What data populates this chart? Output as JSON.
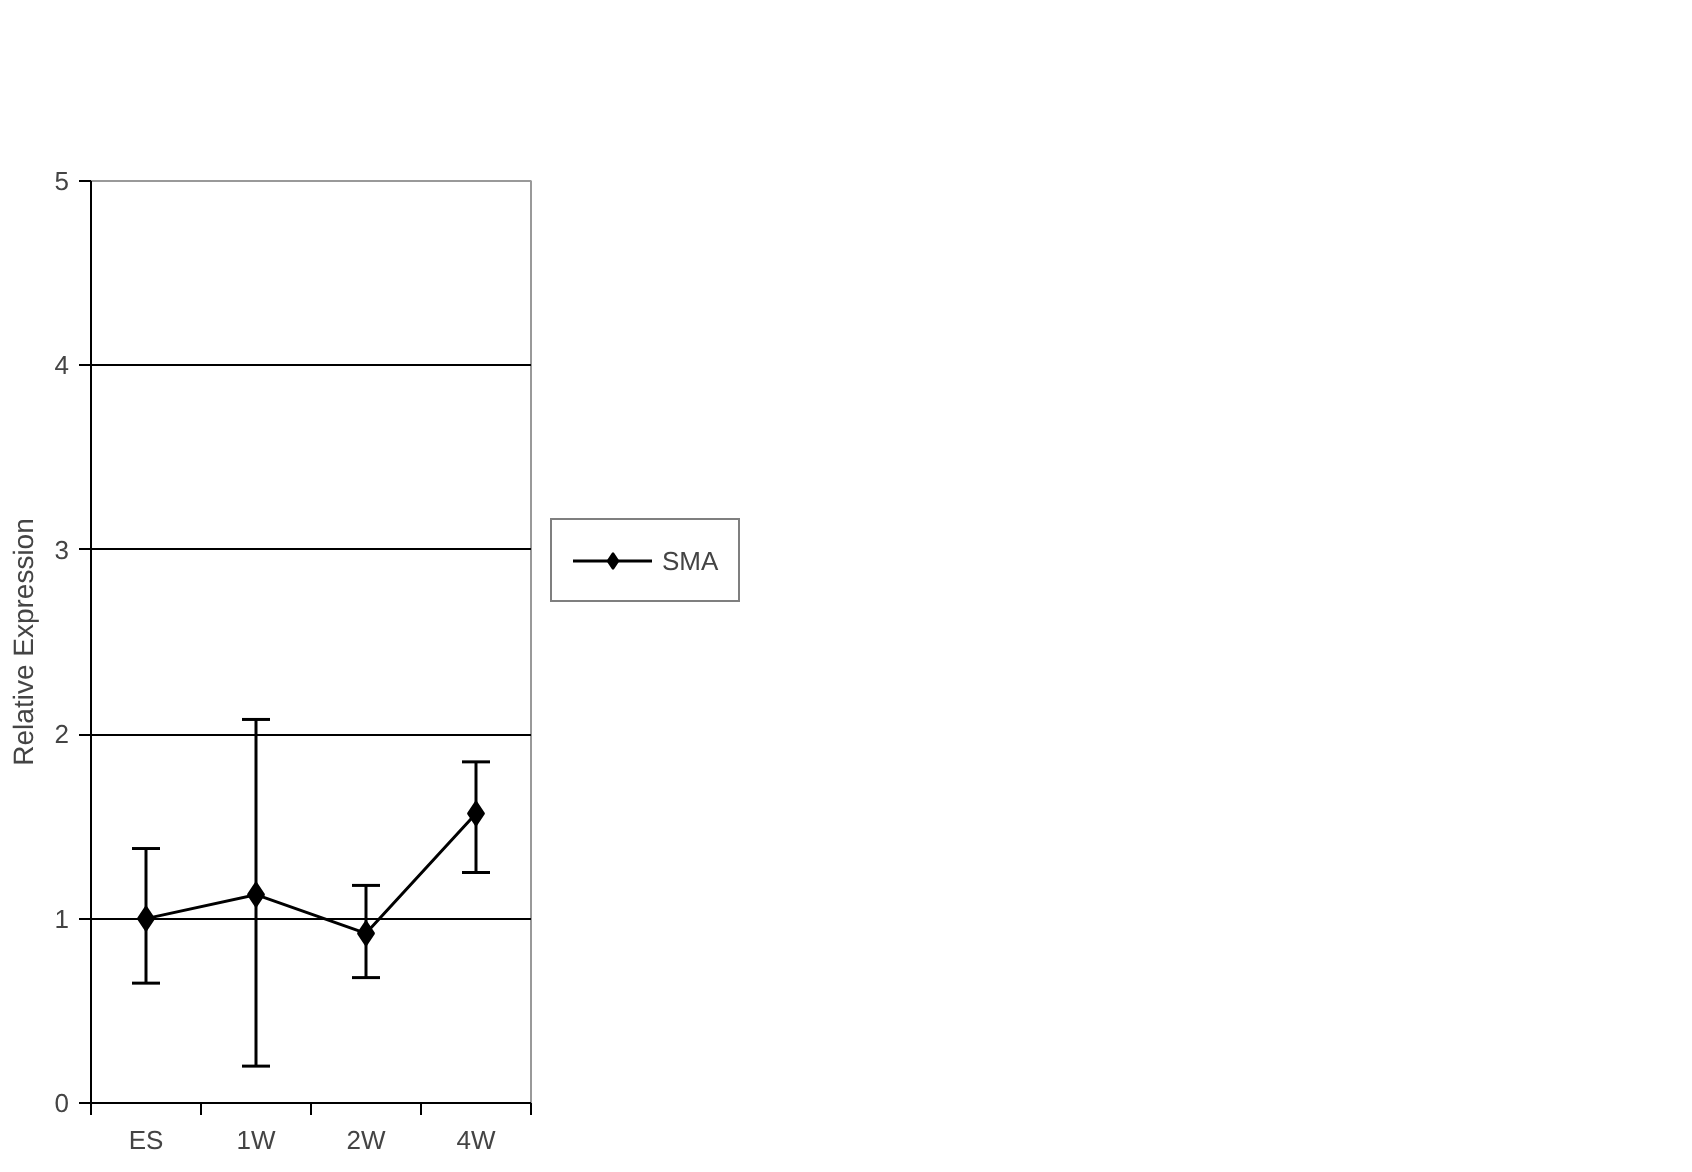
{
  "chart_data": {
    "type": "line",
    "ylabel": "Relative Expression",
    "categories": [
      "ES",
      "1W",
      "2W",
      "4W"
    ],
    "series": [
      {
        "name": "SMA",
        "color": "#000000",
        "values": [
          1.0,
          1.13,
          0.92,
          1.57
        ],
        "errors": [
          [
            0.65,
            1.38
          ],
          [
            0.2,
            2.08
          ],
          [
            0.68,
            1.18
          ],
          [
            1.25,
            1.85
          ]
        ]
      }
    ],
    "ylim": [
      0,
      5
    ],
    "yticks": [
      0,
      1,
      2,
      3,
      4,
      5
    ],
    "grid": "y",
    "legend": "right",
    "marker": "diamond",
    "line_style": "solid"
  }
}
